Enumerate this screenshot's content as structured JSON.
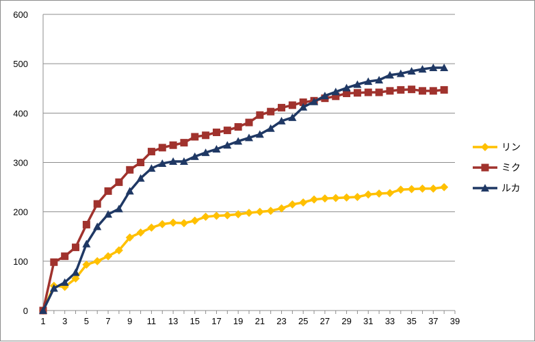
{
  "chart_data": {
    "type": "line",
    "title": "",
    "xlabel": "",
    "ylabel": "",
    "ylim": [
      0,
      600
    ],
    "xlim": [
      1,
      39
    ],
    "yticks": [
      0,
      100,
      200,
      300,
      400,
      500,
      600
    ],
    "xticks": [
      1,
      3,
      5,
      7,
      9,
      11,
      13,
      15,
      17,
      19,
      21,
      23,
      25,
      27,
      29,
      31,
      33,
      35,
      37,
      39
    ],
    "grid": "horizontal",
    "legend_position": "right",
    "x": [
      1,
      2,
      3,
      4,
      5,
      6,
      7,
      8,
      9,
      10,
      11,
      12,
      13,
      14,
      15,
      16,
      17,
      18,
      19,
      20,
      21,
      22,
      23,
      24,
      25,
      26,
      27,
      28,
      29,
      30,
      31,
      32,
      33,
      34,
      35,
      36,
      37,
      38
    ],
    "series": [
      {
        "name": "リン",
        "color": "#FFC000",
        "marker": "diamond",
        "values": [
          0,
          50,
          48,
          65,
          93,
          100,
          110,
          122,
          148,
          158,
          168,
          175,
          178,
          177,
          182,
          190,
          192,
          193,
          195,
          198,
          200,
          202,
          207,
          215,
          219,
          225,
          227,
          228,
          229,
          230,
          235,
          237,
          238,
          245,
          246,
          247,
          247,
          250
        ]
      },
      {
        "name": "ミク",
        "color": "#A0322D",
        "marker": "square",
        "values": [
          0,
          98,
          110,
          128,
          174,
          216,
          242,
          260,
          285,
          300,
          322,
          330,
          335,
          340,
          352,
          355,
          361,
          365,
          372,
          381,
          396,
          403,
          411,
          416,
          422,
          425,
          430,
          434,
          440,
          441,
          442,
          442,
          445,
          447,
          448,
          445,
          445,
          447
        ]
      },
      {
        "name": "ルカ",
        "color": "#1F3864",
        "marker": "triangle",
        "values": [
          0,
          45,
          57,
          77,
          135,
          170,
          195,
          206,
          242,
          268,
          288,
          298,
          302,
          302,
          312,
          320,
          327,
          335,
          343,
          350,
          357,
          369,
          384,
          391,
          412,
          423,
          435,
          443,
          451,
          458,
          464,
          467,
          477,
          480,
          485,
          489,
          492,
          492
        ]
      }
    ]
  }
}
